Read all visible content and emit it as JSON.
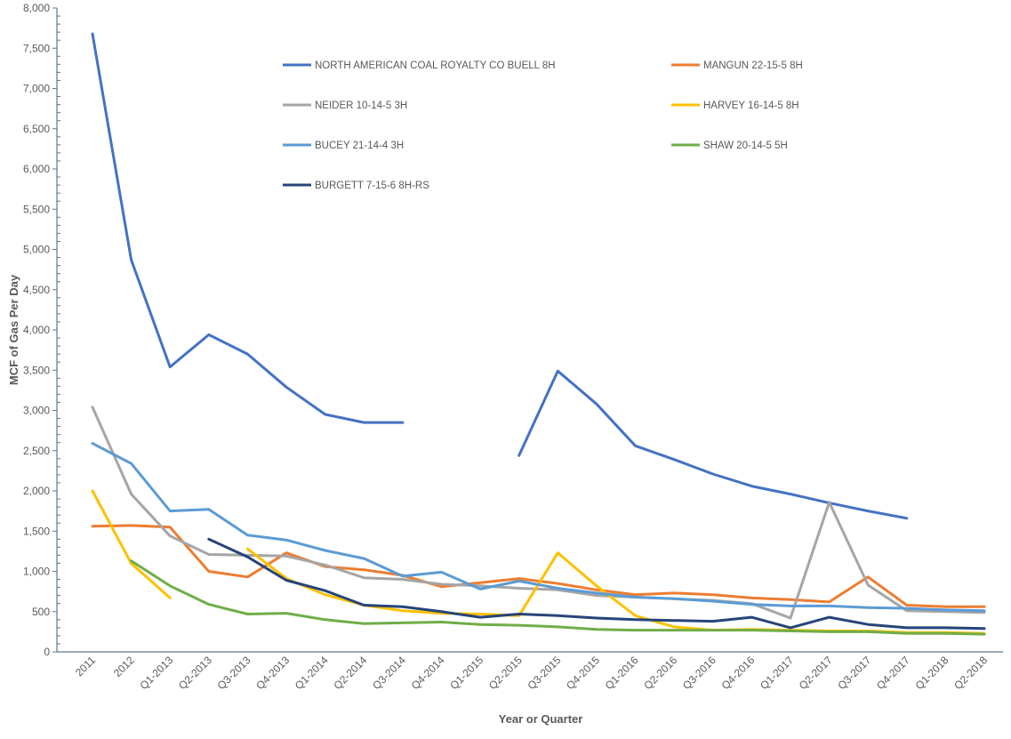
{
  "chart_data": {
    "type": "line",
    "title": "",
    "xlabel": "Year or Quarter",
    "ylabel": "MCF of Gas Per Day",
    "ylim": [
      0,
      8000
    ],
    "ytick_step": 500,
    "yticks": [
      "0",
      "500",
      "1,000",
      "1,500",
      "2,000",
      "2,500",
      "3,000",
      "3,500",
      "4,000",
      "4,500",
      "5,000",
      "5,500",
      "6,000",
      "6,500",
      "7,000",
      "7,500",
      "8,000"
    ],
    "grid": false,
    "legend_position": "top-inside",
    "categories": [
      "2011",
      "2012",
      "Q1-2013",
      "Q2-2013",
      "Q3-2013",
      "Q4-2013",
      "Q1-2014",
      "Q2-2014",
      "Q3-2014",
      "Q4-2014",
      "Q1-2015",
      "Q2-2015",
      "Q3-2015",
      "Q4-2015",
      "Q1-2016",
      "Q2-2016",
      "Q3-2016",
      "Q4-2016",
      "Q1-2017",
      "Q2-2017",
      "Q3-2017",
      "Q4-2017",
      "Q1-2018",
      "Q2-2018"
    ],
    "series": [
      {
        "name": "NORTH AMERICAN COAL ROYALTY CO BUELL 8H",
        "color": "#4472C4",
        "values": [
          7680,
          4870,
          3540,
          3940,
          3700,
          3290,
          2950,
          2850,
          2850,
          null,
          null,
          2440,
          3490,
          3080,
          2560,
          2390,
          2210,
          2060,
          1960,
          1850,
          1750,
          1660,
          null,
          null
        ]
      },
      {
        "name": "MANGUN 22-15-5 8H",
        "color": "#ED7D31",
        "values": [
          1560,
          1570,
          1550,
          1000,
          930,
          1230,
          1060,
          1020,
          950,
          810,
          860,
          910,
          850,
          770,
          710,
          730,
          710,
          670,
          650,
          620,
          930,
          580,
          560,
          560
        ]
      },
      {
        "name": "NEIDER 10-14-5 3H",
        "color": "#A5A5A5",
        "values": [
          3040,
          1960,
          1440,
          1210,
          1200,
          1190,
          1080,
          920,
          900,
          840,
          820,
          790,
          770,
          700,
          680,
          660,
          640,
          600,
          420,
          1860,
          830,
          510,
          500,
          490
        ]
      },
      {
        "name": "HARVEY 16-14-5 8H",
        "color": "#FFC000",
        "values": [
          2000,
          1100,
          670,
          null,
          1280,
          910,
          710,
          580,
          510,
          480,
          470,
          450,
          1230,
          820,
          450,
          310,
          270,
          280,
          270,
          260,
          260,
          240,
          240,
          230
        ]
      },
      {
        "name": "BUCEY 21-14-4 3H",
        "color": "#5B9BD5",
        "values": [
          2590,
          2340,
          1750,
          1770,
          1450,
          1390,
          1260,
          1160,
          940,
          990,
          780,
          880,
          790,
          730,
          680,
          660,
          630,
          590,
          570,
          570,
          550,
          540,
          520,
          510
        ]
      },
      {
        "name": "SHAW 20-14-5 5H",
        "color": "#70AD47",
        "values": [
          null,
          1130,
          820,
          590,
          470,
          480,
          400,
          350,
          360,
          370,
          340,
          330,
          310,
          280,
          270,
          270,
          270,
          270,
          260,
          250,
          250,
          230,
          230,
          220
        ]
      },
      {
        "name": "BURGETT 7-15-6 8H-RS",
        "color": "#264478",
        "values": [
          null,
          null,
          null,
          1400,
          1180,
          890,
          760,
          580,
          560,
          500,
          430,
          470,
          450,
          420,
          400,
          390,
          380,
          430,
          300,
          430,
          340,
          300,
          300,
          290
        ]
      }
    ]
  }
}
